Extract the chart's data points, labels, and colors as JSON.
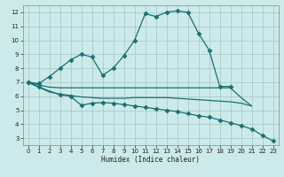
{
  "xlabel": "Humidex (Indice chaleur)",
  "bg_color": "#cceaea",
  "grid_color": "#aacccc",
  "line_color": "#1a7070",
  "xlim": [
    -0.5,
    23.5
  ],
  "ylim": [
    2.5,
    12.5
  ],
  "xticks": [
    0,
    1,
    2,
    3,
    4,
    5,
    6,
    7,
    8,
    9,
    10,
    11,
    12,
    13,
    14,
    15,
    16,
    17,
    18,
    19,
    20,
    21,
    22,
    23
  ],
  "yticks": [
    3,
    4,
    5,
    6,
    7,
    8,
    9,
    10,
    11,
    12
  ],
  "series": [
    {
      "x": [
        0,
        1,
        2,
        3,
        4,
        5,
        6,
        7,
        8,
        9,
        10,
        11,
        12,
        13,
        14,
        15,
        16,
        17,
        18,
        19
      ],
      "y": [
        7.0,
        6.9,
        7.4,
        8.0,
        8.6,
        9.0,
        8.8,
        7.5,
        8.0,
        8.9,
        10.0,
        11.9,
        11.7,
        12.0,
        12.1,
        12.0,
        10.5,
        9.3,
        6.7,
        6.7
      ],
      "marker": "D",
      "ms": 2.5
    },
    {
      "comment": "line from x=0 to x=16 around y=6.6-6.7",
      "x": [
        0,
        1,
        2,
        3,
        4,
        5,
        6,
        7,
        8,
        9,
        10,
        11,
        12,
        13,
        14,
        15,
        16,
        17,
        18,
        19,
        20,
        21
      ],
      "y": [
        7.0,
        6.8,
        6.65,
        6.6,
        6.6,
        6.6,
        6.6,
        6.6,
        6.6,
        6.6,
        6.6,
        6.6,
        6.6,
        6.6,
        6.6,
        6.6,
        6.6,
        6.6,
        6.6,
        6.6,
        5.9,
        5.3
      ],
      "marker": null,
      "ms": 0
    },
    {
      "x": [
        0,
        1,
        2,
        3,
        4,
        5,
        6,
        7,
        8,
        9,
        10,
        11,
        12,
        13,
        14,
        15,
        16,
        17,
        18,
        19,
        20,
        21
      ],
      "y": [
        7.0,
        6.65,
        6.3,
        6.15,
        6.05,
        5.95,
        5.9,
        5.85,
        5.85,
        5.85,
        5.9,
        5.9,
        5.9,
        5.9,
        5.85,
        5.8,
        5.75,
        5.7,
        5.65,
        5.6,
        5.5,
        5.3
      ],
      "marker": null,
      "ms": 0
    },
    {
      "x": [
        0,
        1,
        3,
        4,
        5,
        6,
        7,
        8,
        9,
        10,
        11,
        12,
        13,
        14,
        15,
        16,
        17,
        18,
        19,
        20,
        21,
        22,
        23
      ],
      "y": [
        7.0,
        6.65,
        6.1,
        6.0,
        5.35,
        5.5,
        5.55,
        5.5,
        5.4,
        5.3,
        5.2,
        5.1,
        5.0,
        4.9,
        4.75,
        4.6,
        4.5,
        4.3,
        4.1,
        3.9,
        3.65,
        3.2,
        2.8
      ],
      "marker": "D",
      "ms": 2.5
    }
  ]
}
